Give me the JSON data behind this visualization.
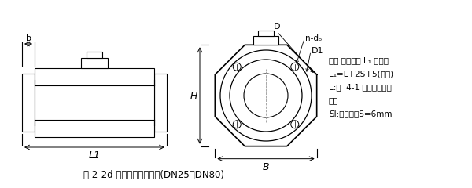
{
  "bg_color": "#ffffff",
  "line_color": "#000000",
  "dash_color": "#888888",
  "title": "图 2-2d 一体型电磁流量计(DN25～DN80)",
  "note_lines": [
    "注： 仪表长度 L₁ 含衬里",
    "L₁=L+2S+5(允差)",
    "L:表  4-1 中仪表理论长",
    "度。",
    "Sl:接地环，S=6mm"
  ],
  "label_b": "b",
  "label_L1": "L1",
  "label_H": "H",
  "label_B": "B",
  "label_D": "D",
  "label_ndo": "n-dₒ",
  "label_D1": "D1"
}
